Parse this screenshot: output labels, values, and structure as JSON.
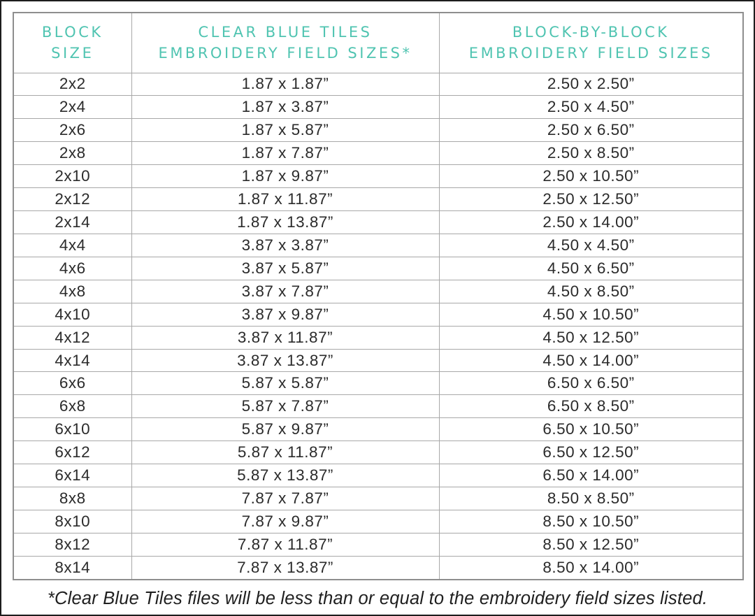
{
  "colors": {
    "header_teal": "#50c4b1",
    "cell_text": "#2b2b2b",
    "table_border": "#8e8e8e",
    "grid_line": "#a8a8a8",
    "frame_border": "#1d1d1d",
    "footnote_text": "#1f1f1f"
  },
  "table": {
    "headers": [
      {
        "line1": "BLOCK",
        "line2": "SIZE"
      },
      {
        "line1": "CLEAR BLUE TILES",
        "line2": "EMBROIDERY FIELD SIZES*"
      },
      {
        "line1": "BLOCK-BY-BLOCK",
        "line2": "EMBROIDERY FIELD SIZES"
      }
    ],
    "rows": [
      {
        "block": "2x2",
        "clear_blue": "1.87 x 1.87”",
        "block_by_block": "2.50 x 2.50”"
      },
      {
        "block": "2x4",
        "clear_blue": "1.87 x 3.87”",
        "block_by_block": "2.50 x 4.50”"
      },
      {
        "block": "2x6",
        "clear_blue": "1.87 x 5.87”",
        "block_by_block": "2.50 x 6.50”"
      },
      {
        "block": "2x8",
        "clear_blue": "1.87 x 7.87”",
        "block_by_block": "2.50 x 8.50”"
      },
      {
        "block": "2x10",
        "clear_blue": "1.87 x 9.87”",
        "block_by_block": "2.50 x 10.50”"
      },
      {
        "block": "2x12",
        "clear_blue": "1.87 x 11.87”",
        "block_by_block": "2.50 x 12.50”"
      },
      {
        "block": "2x14",
        "clear_blue": "1.87 x 13.87”",
        "block_by_block": "2.50 x 14.00”"
      },
      {
        "block": "4x4",
        "clear_blue": "3.87 x 3.87”",
        "block_by_block": "4.50 x 4.50”"
      },
      {
        "block": "4x6",
        "clear_blue": "3.87 x 5.87”",
        "block_by_block": "4.50 x 6.50”"
      },
      {
        "block": "4x8",
        "clear_blue": "3.87 x 7.87”",
        "block_by_block": "4.50 x 8.50”"
      },
      {
        "block": "4x10",
        "clear_blue": "3.87 x 9.87”",
        "block_by_block": "4.50 x 10.50”"
      },
      {
        "block": "4x12",
        "clear_blue": "3.87 x 11.87”",
        "block_by_block": "4.50 x 12.50”"
      },
      {
        "block": "4x14",
        "clear_blue": "3.87 x 13.87”",
        "block_by_block": "4.50 x 14.00”"
      },
      {
        "block": "6x6",
        "clear_blue": "5.87 x 5.87”",
        "block_by_block": "6.50 x 6.50”"
      },
      {
        "block": "6x8",
        "clear_blue": "5.87 x 7.87”",
        "block_by_block": "6.50 x 8.50”"
      },
      {
        "block": "6x10",
        "clear_blue": "5.87 x 9.87”",
        "block_by_block": "6.50 x 10.50”"
      },
      {
        "block": "6x12",
        "clear_blue": "5.87 x 11.87”",
        "block_by_block": "6.50 x 12.50”"
      },
      {
        "block": "6x14",
        "clear_blue": "5.87 x 13.87”",
        "block_by_block": "6.50 x 14.00”"
      },
      {
        "block": "8x8",
        "clear_blue": "7.87 x 7.87”",
        "block_by_block": "8.50 x 8.50”"
      },
      {
        "block": "8x10",
        "clear_blue": "7.87 x 9.87”",
        "block_by_block": "8.50 x 10.50”"
      },
      {
        "block": "8x12",
        "clear_blue": "7.87 x 11.87”",
        "block_by_block": "8.50 x 12.50”"
      },
      {
        "block": "8x14",
        "clear_blue": "7.87 x 13.87”",
        "block_by_block": "8.50 x 14.00”"
      }
    ]
  },
  "footnote": "*Clear Blue Tiles files will be less than or equal to the embroidery field sizes listed."
}
